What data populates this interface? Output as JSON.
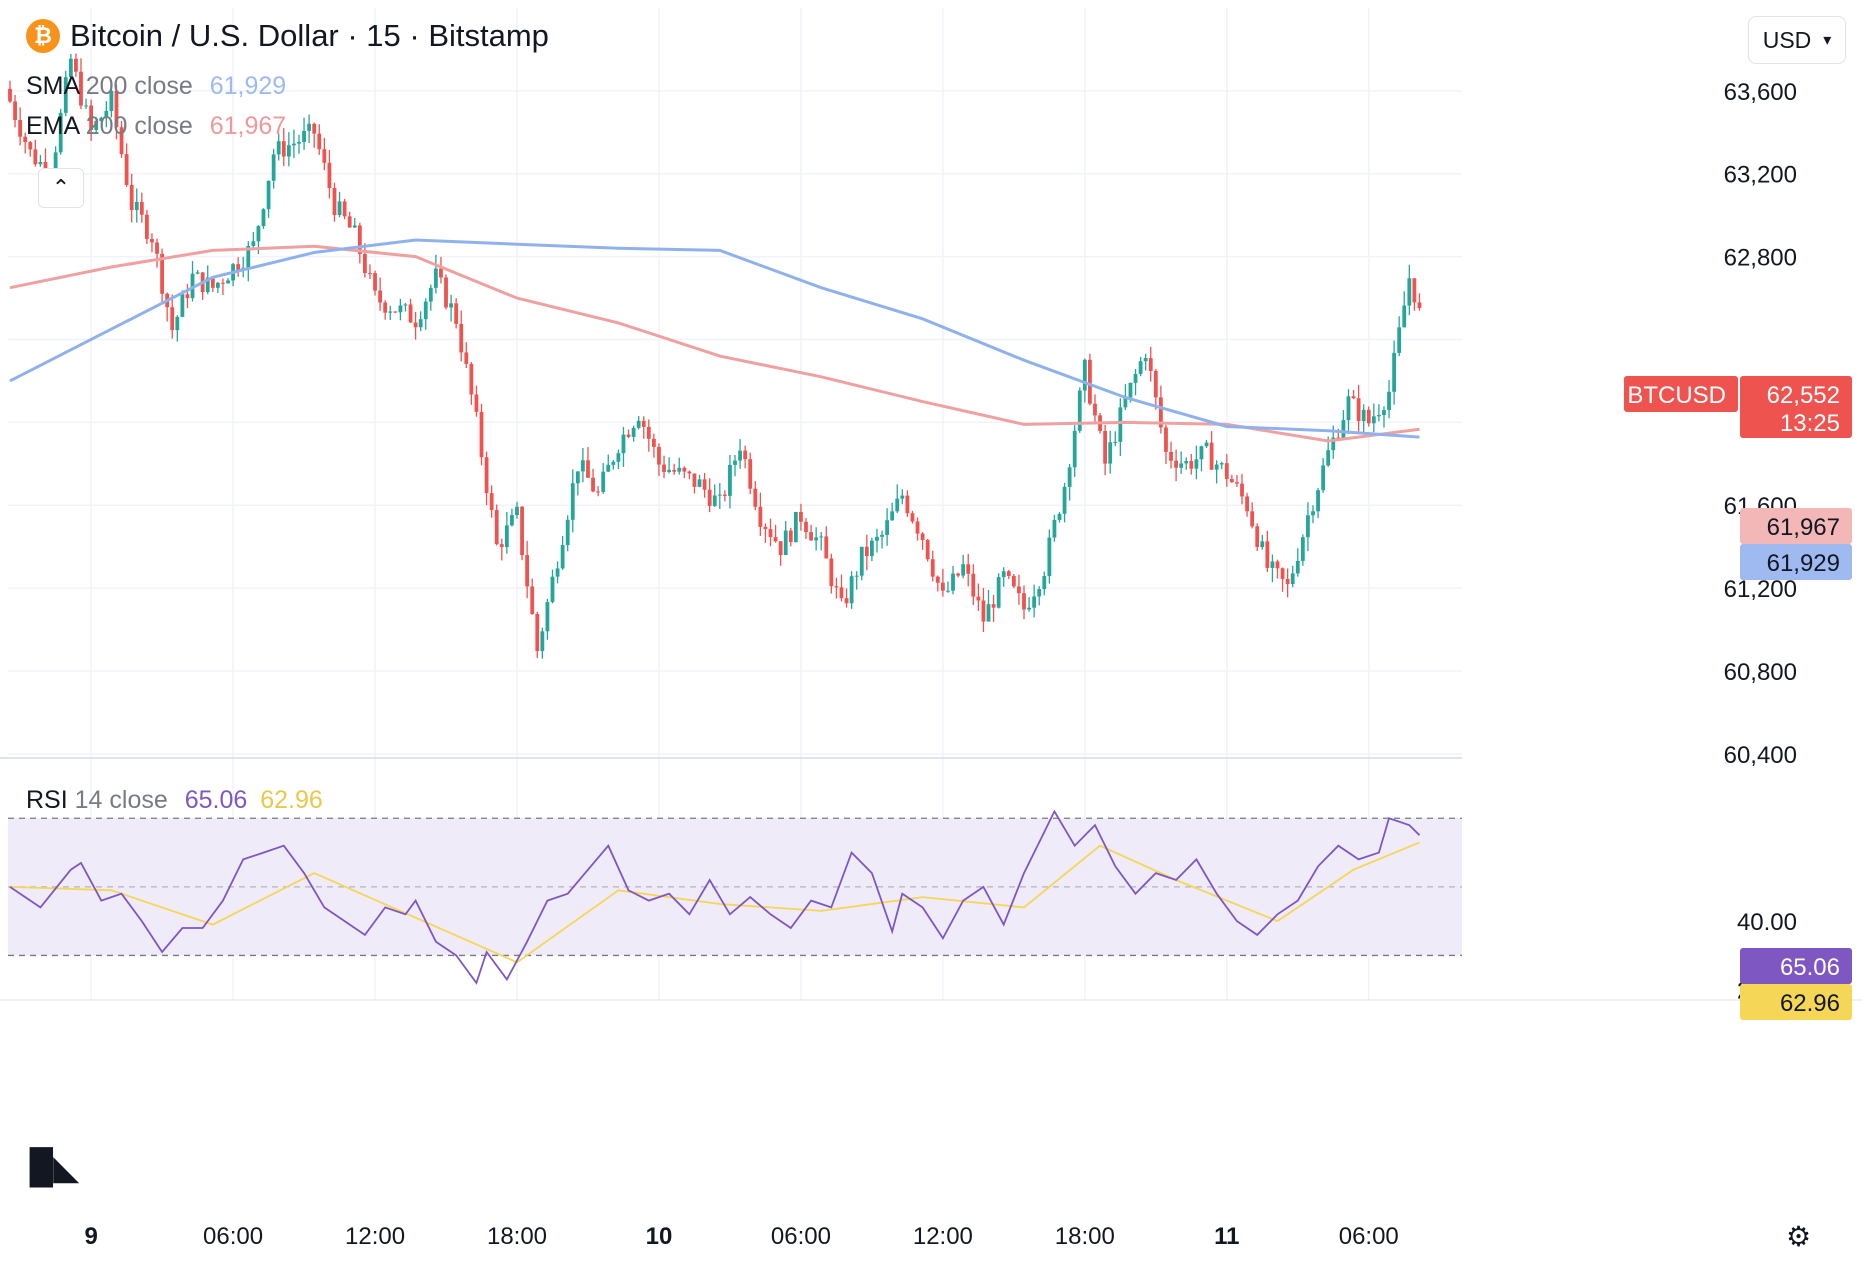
{
  "header": {
    "title": "Bitcoin / U.S. Dollar · 15 · Bitstamp",
    "logo_glyph": "₿",
    "currency_selector": "USD"
  },
  "legend": {
    "sma": {
      "name": "SMA",
      "params": "200 close",
      "value": "61,929",
      "color": "#9ebaf0"
    },
    "ema": {
      "name": "EMA",
      "params": "200 close",
      "value": "61,967",
      "color": "#ef9a9a"
    },
    "rsi": {
      "name": "RSI",
      "params": "14 close",
      "value": "65.06",
      "ma_value": "62.96"
    }
  },
  "price_badges": {
    "symbol": "BTCUSD",
    "last": "62,552",
    "countdown": "13:25",
    "ema": "61,967",
    "sma": "61,929",
    "rsi": "65.06",
    "rsi_ma": "62.96"
  },
  "colors": {
    "up": "#26a69a",
    "down": "#ef5350",
    "sma": "#8fb2ec",
    "ema": "#efa1a1",
    "rsi": "#7e57c2",
    "rsi_ma": "#f5d657",
    "rsi_band": "#efebf8"
  },
  "icons": {
    "collapse": "chevron-up-icon",
    "settings": "gear-icon",
    "brand": "tradingview-logo",
    "dropdown": "chevron-down-icon"
  },
  "chart_data": {
    "type": "candlestick",
    "interval": "15",
    "price_axis": {
      "ticks": [
        "63,600",
        "63,200",
        "62,800",
        "61,600",
        "61,200",
        "60,800",
        "60,400"
      ],
      "ylim": [
        60380,
        64000
      ]
    },
    "rsi_axis": {
      "ticks": [
        "40.00",
        "20.00"
      ],
      "ylim": [
        17,
        87
      ],
      "bands": [
        30,
        50,
        70
      ]
    },
    "time_axis": {
      "ticks": [
        {
          "label": "9",
          "bold": true
        },
        {
          "label": "06:00",
          "bold": false
        },
        {
          "label": "12:00",
          "bold": false
        },
        {
          "label": "18:00",
          "bold": false
        },
        {
          "label": "10",
          "bold": true
        },
        {
          "label": "06:00",
          "bold": false
        },
        {
          "label": "12:00",
          "bold": false
        },
        {
          "label": "18:00",
          "bold": false
        },
        {
          "label": "11",
          "bold": true
        },
        {
          "label": "06:00",
          "bold": false
        }
      ]
    },
    "close_path": [
      {
        "bar": 0,
        "price": 63550
      },
      {
        "bar": 4,
        "price": 63300
      },
      {
        "bar": 8,
        "price": 63200
      },
      {
        "bar": 12,
        "price": 63750
      },
      {
        "bar": 16,
        "price": 63400
      },
      {
        "bar": 20,
        "price": 63550
      },
      {
        "bar": 24,
        "price": 63050
      },
      {
        "bar": 28,
        "price": 62900
      },
      {
        "bar": 32,
        "price": 62450
      },
      {
        "bar": 36,
        "price": 62700
      },
      {
        "bar": 40,
        "price": 62650
      },
      {
        "bar": 44,
        "price": 62750
      },
      {
        "bar": 48,
        "price": 62850
      },
      {
        "bar": 52,
        "price": 63300
      },
      {
        "bar": 56,
        "price": 63350
      },
      {
        "bar": 60,
        "price": 63400
      },
      {
        "bar": 64,
        "price": 63050
      },
      {
        "bar": 68,
        "price": 62900
      },
      {
        "bar": 72,
        "price": 62600
      },
      {
        "bar": 76,
        "price": 62550
      },
      {
        "bar": 80,
        "price": 62500
      },
      {
        "bar": 84,
        "price": 62700
      },
      {
        "bar": 88,
        "price": 62500
      },
      {
        "bar": 92,
        "price": 62000
      },
      {
        "bar": 96,
        "price": 61400
      },
      {
        "bar": 100,
        "price": 61550
      },
      {
        "bar": 104,
        "price": 60900
      },
      {
        "bar": 108,
        "price": 61350
      },
      {
        "bar": 112,
        "price": 61800
      },
      {
        "bar": 116,
        "price": 61650
      },
      {
        "bar": 120,
        "price": 61900
      },
      {
        "bar": 124,
        "price": 62050
      },
      {
        "bar": 128,
        "price": 61800
      },
      {
        "bar": 132,
        "price": 61750
      },
      {
        "bar": 136,
        "price": 61700
      },
      {
        "bar": 140,
        "price": 61600
      },
      {
        "bar": 144,
        "price": 61900
      },
      {
        "bar": 148,
        "price": 61550
      },
      {
        "bar": 152,
        "price": 61400
      },
      {
        "bar": 156,
        "price": 61550
      },
      {
        "bar": 160,
        "price": 61400
      },
      {
        "bar": 164,
        "price": 61100
      },
      {
        "bar": 168,
        "price": 61350
      },
      {
        "bar": 172,
        "price": 61450
      },
      {
        "bar": 176,
        "price": 61650
      },
      {
        "bar": 180,
        "price": 61450
      },
      {
        "bar": 184,
        "price": 61150
      },
      {
        "bar": 188,
        "price": 61300
      },
      {
        "bar": 192,
        "price": 61050
      },
      {
        "bar": 196,
        "price": 61250
      },
      {
        "bar": 200,
        "price": 61100
      },
      {
        "bar": 204,
        "price": 61300
      },
      {
        "bar": 208,
        "price": 61700
      },
      {
        "bar": 212,
        "price": 62250
      },
      {
        "bar": 216,
        "price": 61800
      },
      {
        "bar": 220,
        "price": 62100
      },
      {
        "bar": 224,
        "price": 62350
      },
      {
        "bar": 228,
        "price": 61850
      },
      {
        "bar": 232,
        "price": 61800
      },
      {
        "bar": 236,
        "price": 61850
      },
      {
        "bar": 240,
        "price": 61750
      },
      {
        "bar": 244,
        "price": 61600
      },
      {
        "bar": 248,
        "price": 61300
      },
      {
        "bar": 252,
        "price": 61200
      },
      {
        "bar": 256,
        "price": 61550
      },
      {
        "bar": 260,
        "price": 61850
      },
      {
        "bar": 264,
        "price": 62100
      },
      {
        "bar": 268,
        "price": 62000
      },
      {
        "bar": 272,
        "price": 62150
      },
      {
        "bar": 276,
        "price": 62700
      },
      {
        "bar": 278,
        "price": 62552
      }
    ],
    "sma_200": [
      {
        "bar": 0,
        "price": 62200
      },
      {
        "bar": 20,
        "price": 62450
      },
      {
        "bar": 40,
        "price": 62700
      },
      {
        "bar": 60,
        "price": 62820
      },
      {
        "bar": 80,
        "price": 62880
      },
      {
        "bar": 100,
        "price": 62860
      },
      {
        "bar": 120,
        "price": 62840
      },
      {
        "bar": 140,
        "price": 62830
      },
      {
        "bar": 160,
        "price": 62650
      },
      {
        "bar": 180,
        "price": 62500
      },
      {
        "bar": 200,
        "price": 62300
      },
      {
        "bar": 220,
        "price": 62120
      },
      {
        "bar": 240,
        "price": 61980
      },
      {
        "bar": 260,
        "price": 61960
      },
      {
        "bar": 278,
        "price": 61929
      }
    ],
    "ema_200": [
      {
        "bar": 0,
        "price": 62650
      },
      {
        "bar": 20,
        "price": 62750
      },
      {
        "bar": 40,
        "price": 62830
      },
      {
        "bar": 60,
        "price": 62850
      },
      {
        "bar": 80,
        "price": 62800
      },
      {
        "bar": 100,
        "price": 62600
      },
      {
        "bar": 120,
        "price": 62480
      },
      {
        "bar": 140,
        "price": 62320
      },
      {
        "bar": 160,
        "price": 62220
      },
      {
        "bar": 180,
        "price": 62100
      },
      {
        "bar": 200,
        "price": 61990
      },
      {
        "bar": 220,
        "price": 62000
      },
      {
        "bar": 240,
        "price": 61990
      },
      {
        "bar": 260,
        "price": 61910
      },
      {
        "bar": 278,
        "price": 61967
      }
    ],
    "rsi_14": [
      {
        "bar": 0,
        "value": 50
      },
      {
        "bar": 6,
        "value": 44
      },
      {
        "bar": 12,
        "value": 55
      },
      {
        "bar": 14,
        "value": 57
      },
      {
        "bar": 18,
        "value": 46
      },
      {
        "bar": 22,
        "value": 48
      },
      {
        "bar": 26,
        "value": 40
      },
      {
        "bar": 30,
        "value": 31
      },
      {
        "bar": 34,
        "value": 38
      },
      {
        "bar": 38,
        "value": 38
      },
      {
        "bar": 42,
        "value": 46
      },
      {
        "bar": 46,
        "value": 58
      },
      {
        "bar": 50,
        "value": 60
      },
      {
        "bar": 54,
        "value": 62
      },
      {
        "bar": 58,
        "value": 54
      },
      {
        "bar": 62,
        "value": 44
      },
      {
        "bar": 66,
        "value": 40
      },
      {
        "bar": 70,
        "value": 36
      },
      {
        "bar": 74,
        "value": 44
      },
      {
        "bar": 78,
        "value": 42
      },
      {
        "bar": 80,
        "value": 46
      },
      {
        "bar": 84,
        "value": 34
      },
      {
        "bar": 88,
        "value": 30
      },
      {
        "bar": 92,
        "value": 22
      },
      {
        "bar": 94,
        "value": 31
      },
      {
        "bar": 98,
        "value": 23
      },
      {
        "bar": 102,
        "value": 34
      },
      {
        "bar": 106,
        "value": 46
      },
      {
        "bar": 110,
        "value": 48
      },
      {
        "bar": 114,
        "value": 55
      },
      {
        "bar": 118,
        "value": 62
      },
      {
        "bar": 122,
        "value": 49
      },
      {
        "bar": 126,
        "value": 46
      },
      {
        "bar": 130,
        "value": 48
      },
      {
        "bar": 134,
        "value": 42
      },
      {
        "bar": 138,
        "value": 52
      },
      {
        "bar": 142,
        "value": 42
      },
      {
        "bar": 146,
        "value": 47
      },
      {
        "bar": 150,
        "value": 42
      },
      {
        "bar": 154,
        "value": 38
      },
      {
        "bar": 158,
        "value": 46
      },
      {
        "bar": 162,
        "value": 44
      },
      {
        "bar": 166,
        "value": 60
      },
      {
        "bar": 170,
        "value": 54
      },
      {
        "bar": 174,
        "value": 37
      },
      {
        "bar": 176,
        "value": 48
      },
      {
        "bar": 180,
        "value": 44
      },
      {
        "bar": 184,
        "value": 35
      },
      {
        "bar": 188,
        "value": 46
      },
      {
        "bar": 192,
        "value": 50
      },
      {
        "bar": 196,
        "value": 39
      },
      {
        "bar": 200,
        "value": 54
      },
      {
        "bar": 204,
        "value": 66
      },
      {
        "bar": 206,
        "value": 72
      },
      {
        "bar": 210,
        "value": 62
      },
      {
        "bar": 214,
        "value": 68
      },
      {
        "bar": 218,
        "value": 56
      },
      {
        "bar": 222,
        "value": 48
      },
      {
        "bar": 226,
        "value": 54
      },
      {
        "bar": 230,
        "value": 52
      },
      {
        "bar": 234,
        "value": 58
      },
      {
        "bar": 238,
        "value": 48
      },
      {
        "bar": 242,
        "value": 40
      },
      {
        "bar": 246,
        "value": 36
      },
      {
        "bar": 250,
        "value": 42
      },
      {
        "bar": 254,
        "value": 46
      },
      {
        "bar": 258,
        "value": 56
      },
      {
        "bar": 262,
        "value": 62
      },
      {
        "bar": 266,
        "value": 58
      },
      {
        "bar": 270,
        "value": 60
      },
      {
        "bar": 272,
        "value": 70
      },
      {
        "bar": 276,
        "value": 68
      },
      {
        "bar": 278,
        "value": 65.06
      }
    ],
    "rsi_ma": [
      {
        "bar": 0,
        "value": 50
      },
      {
        "bar": 20,
        "value": 49
      },
      {
        "bar": 40,
        "value": 39
      },
      {
        "bar": 60,
        "value": 54
      },
      {
        "bar": 80,
        "value": 41
      },
      {
        "bar": 100,
        "value": 28
      },
      {
        "bar": 120,
        "value": 49
      },
      {
        "bar": 140,
        "value": 45
      },
      {
        "bar": 160,
        "value": 43
      },
      {
        "bar": 180,
        "value": 47
      },
      {
        "bar": 200,
        "value": 44
      },
      {
        "bar": 215,
        "value": 62
      },
      {
        "bar": 230,
        "value": 52
      },
      {
        "bar": 250,
        "value": 40
      },
      {
        "bar": 265,
        "value": 55
      },
      {
        "bar": 278,
        "value": 62.96
      }
    ]
  }
}
